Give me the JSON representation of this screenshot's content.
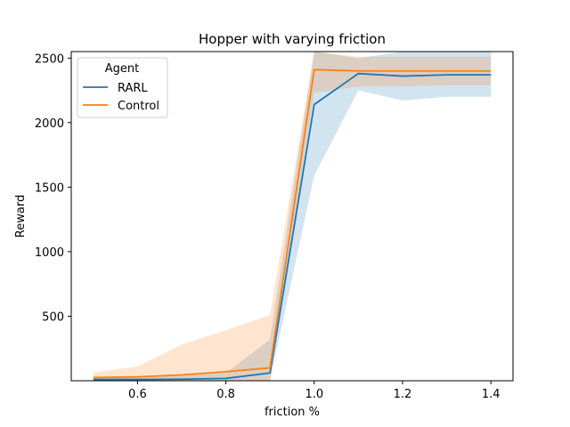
{
  "chart_data": {
    "type": "line",
    "title": "Hopper with varying friction",
    "xlabel": "friction %",
    "ylabel": "Reward",
    "xlim": [
      0.45,
      1.45
    ],
    "ylim": [
      0,
      2550
    ],
    "xticks": [
      0.6,
      0.8,
      1.0,
      1.2,
      1.4
    ],
    "xtick_labels": [
      "0.6",
      "0.8",
      "1.0",
      "1.2",
      "1.4"
    ],
    "yticks": [
      500,
      1000,
      1500,
      2000,
      2500
    ],
    "ytick_labels": [
      "500",
      "1000",
      "1500",
      "2000",
      "2500"
    ],
    "grid": false,
    "legend": {
      "title": "Agent",
      "placement": "top-left"
    },
    "x": [
      0.5,
      0.6,
      0.7,
      0.8,
      0.9,
      1.0,
      1.1,
      1.2,
      1.3,
      1.4
    ],
    "series": [
      {
        "name": "RARL",
        "color": "#1f77b4",
        "values": [
          10,
          10,
          12,
          18,
          60,
          2140,
          2380,
          2360,
          2370,
          2370
        ],
        "lower": [
          0,
          0,
          0,
          0,
          0,
          1590,
          2250,
          2170,
          2200,
          2200
        ],
        "upper": [
          30,
          30,
          40,
          60,
          320,
          2550,
          2500,
          2550,
          2550,
          2550
        ]
      },
      {
        "name": "Control",
        "color": "#ff7f0e",
        "values": [
          25,
          30,
          45,
          70,
          100,
          2410,
          2400,
          2400,
          2400,
          2400
        ],
        "lower": [
          0,
          0,
          0,
          0,
          0,
          2230,
          2280,
          2280,
          2290,
          2290
        ],
        "upper": [
          65,
          110,
          280,
          390,
          510,
          2550,
          2510,
          2510,
          2510,
          2510
        ]
      }
    ]
  }
}
